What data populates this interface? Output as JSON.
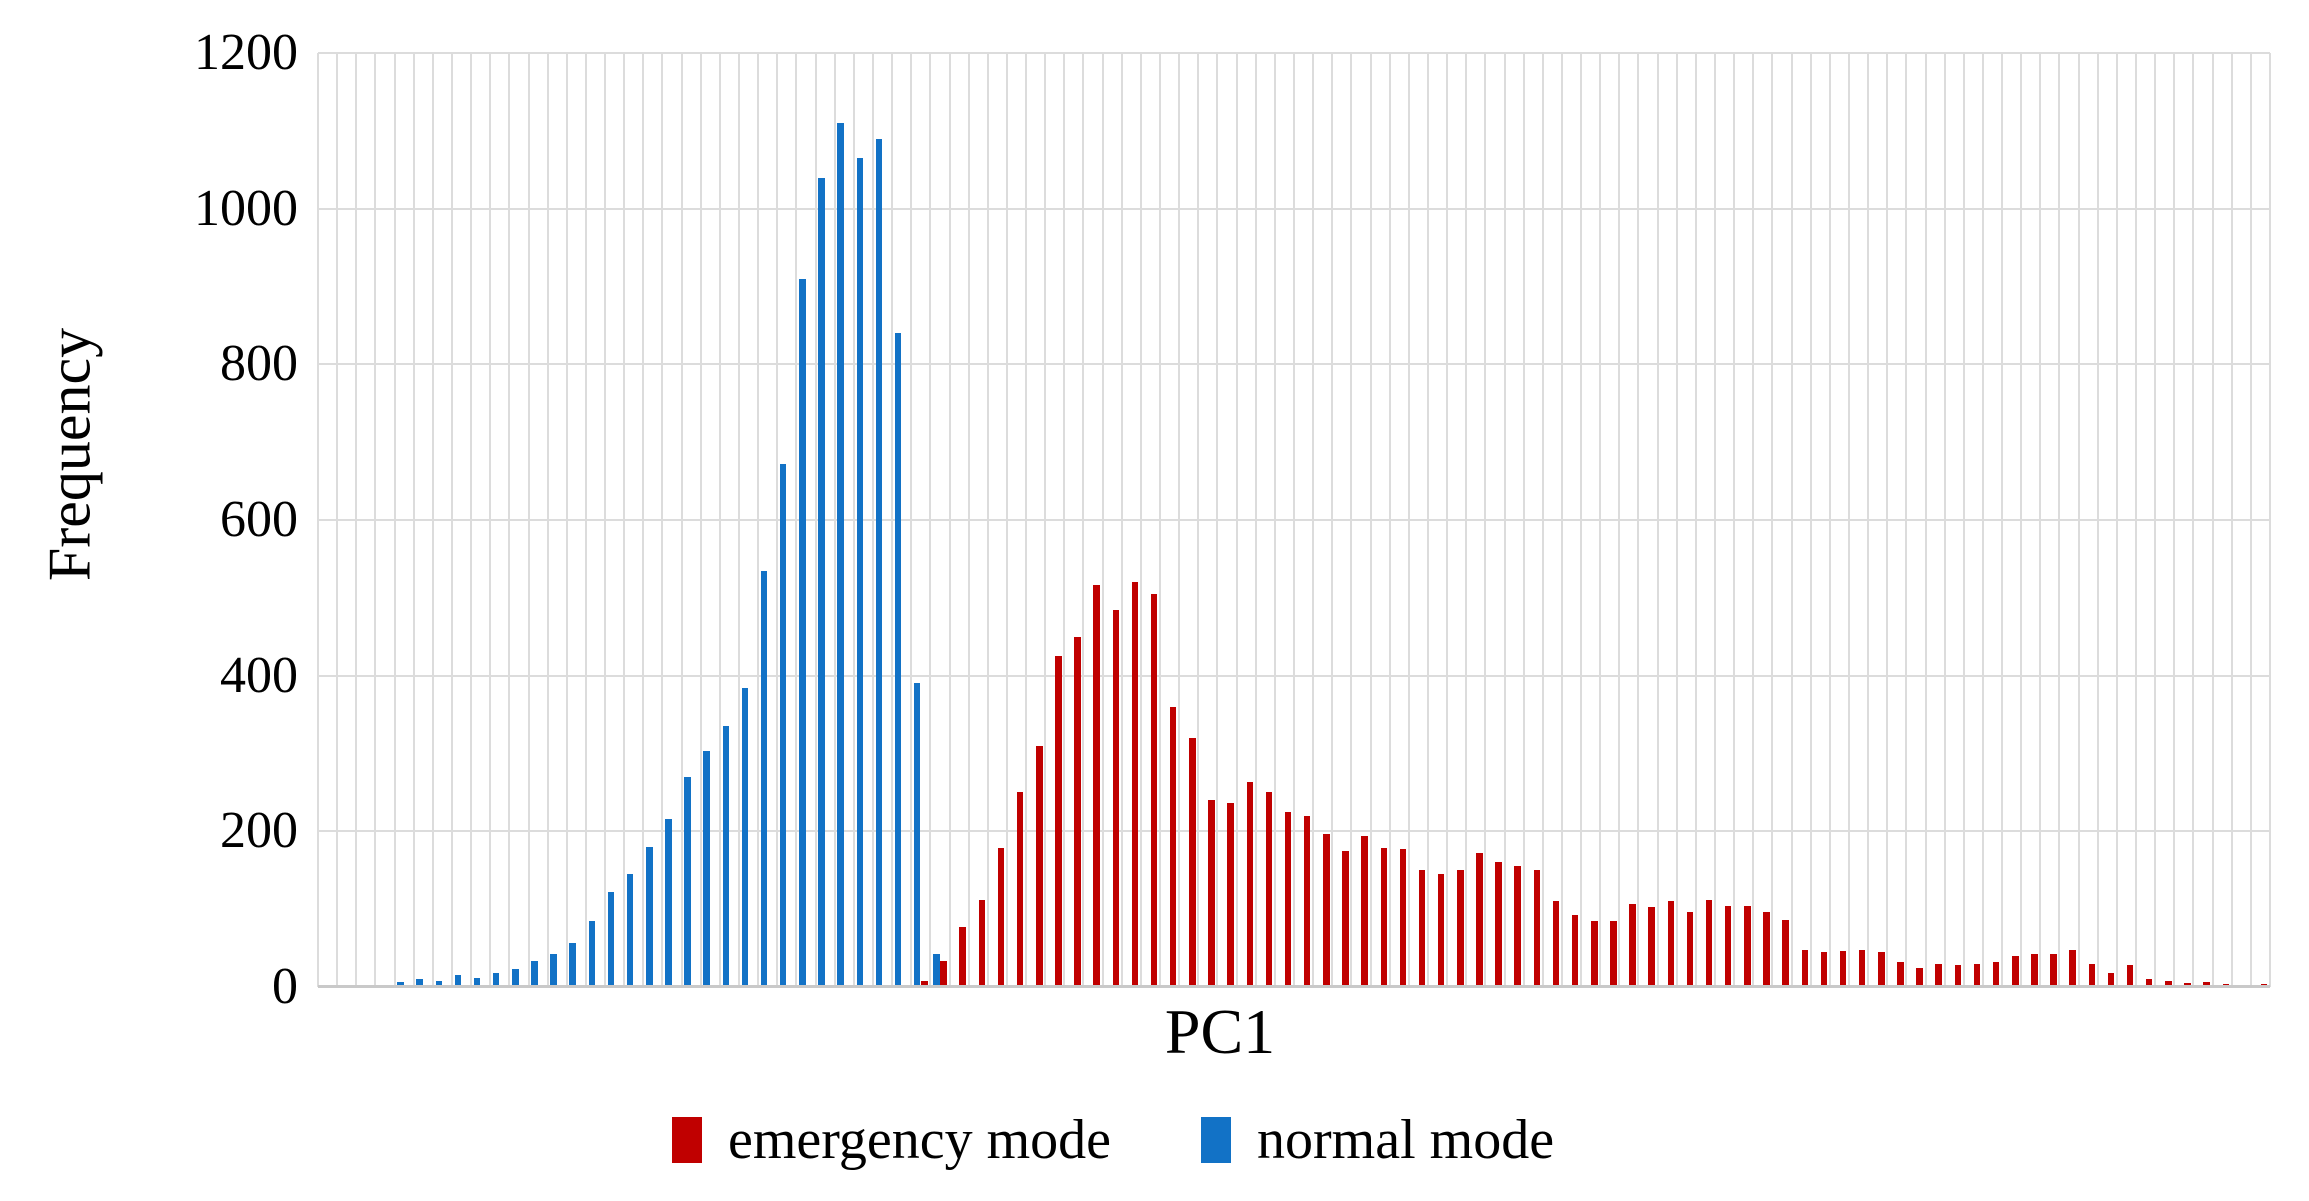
{
  "axes": {
    "y_label": "Frequency",
    "x_label": "PC1",
    "y_ticks": [
      "1200",
      "1000",
      "800",
      "600",
      "400",
      "200",
      "0"
    ]
  },
  "legend": {
    "items": [
      {
        "label": "emergency mode",
        "color": "#C00000"
      },
      {
        "label": "normal mode",
        "color": "#1272C6"
      }
    ]
  },
  "colors": {
    "emergency": "#C00000",
    "normal": "#1272C6",
    "gridline": "#DCDCDC",
    "axis_line": "#C9C9C9"
  },
  "chart_data": {
    "type": "bar",
    "subtype": "clustered-histogram",
    "title": "",
    "xlabel": "PC1",
    "ylabel": "Frequency",
    "ylim": [
      0,
      1200
    ],
    "yticks": [
      0,
      200,
      400,
      600,
      800,
      1000,
      1200
    ],
    "x_tick_labels": "none (unlabeled PC1 bins)",
    "grid": "vertical line at every bin boundary, horizontal line every 200",
    "legend_position": "bottom-center",
    "bin_count": 102,
    "series": [
      {
        "name": "emergency mode",
        "color": "#C00000",
        "values": [
          0,
          0,
          0,
          0,
          0,
          0,
          0,
          0,
          0,
          0,
          0,
          0,
          0,
          0,
          0,
          0,
          0,
          0,
          0,
          0,
          0,
          0,
          0,
          0,
          0,
          0,
          0,
          0,
          0,
          3,
          3,
          8,
          33,
          77,
          112,
          178,
          250,
          310,
          425,
          450,
          517,
          485,
          520,
          505,
          360,
          320,
          240,
          237,
          263,
          250,
          225,
          220,
          196,
          175,
          194,
          178,
          177,
          150,
          145,
          150,
          172,
          160,
          155,
          150,
          110,
          93,
          85,
          85,
          107,
          103,
          110,
          96,
          112,
          104,
          104,
          97,
          86,
          48,
          45,
          46,
          47,
          45,
          32,
          25,
          30,
          28,
          30,
          32,
          40,
          42,
          43,
          47,
          30,
          18,
          28,
          10,
          8,
          5,
          6,
          4,
          3,
          4
        ]
      },
      {
        "name": "normal mode",
        "color": "#1272C6",
        "values": [
          2,
          0,
          2,
          2,
          6,
          10,
          8,
          15,
          12,
          18,
          23,
          33,
          43,
          57,
          85,
          122,
          145,
          180,
          216,
          270,
          303,
          335,
          384,
          535,
          672,
          910,
          1040,
          1110,
          1065,
          1090,
          840,
          390,
          43,
          3,
          0,
          0,
          0,
          0,
          0,
          0,
          0,
          0,
          0,
          0,
          0,
          0,
          0,
          0,
          0,
          0,
          0,
          0,
          0,
          0,
          0,
          0,
          0,
          0,
          0,
          0,
          0,
          0,
          0,
          0,
          0,
          0,
          0,
          0,
          0,
          0,
          0,
          0,
          0,
          0,
          0,
          0,
          0,
          0,
          0,
          0,
          0,
          0,
          0,
          0,
          0,
          0,
          0,
          0,
          0,
          0,
          0,
          0,
          0,
          0,
          0,
          0,
          0,
          0,
          0,
          0,
          0,
          0
        ]
      }
    ]
  },
  "layout_note": "white background, no chart border, serif axis text"
}
